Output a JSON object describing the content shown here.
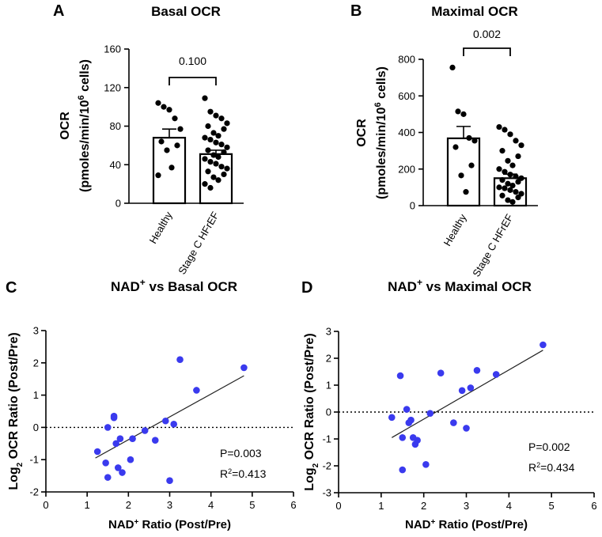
{
  "chart_data": [
    {
      "panel": "A",
      "type": "bar",
      "title": "Basal OCR",
      "ylabel_line1": "OCR",
      "ylabel_line2": "(pmoles/min/10",
      "ylabel_sup": "6",
      "ylabel_line2_end": " cells)",
      "ylim": [
        0,
        160
      ],
      "yticks": [
        0,
        40,
        80,
        120,
        160
      ],
      "categories": [
        "Healthy",
        "Stage C HFrEF"
      ],
      "values": [
        68,
        51
      ],
      "sem": [
        9,
        4
      ],
      "comparison_p": "0.100",
      "points": [
        [
          104,
          100,
          97,
          88,
          77,
          64,
          60,
          55,
          37,
          29
        ],
        [
          109,
          95,
          91,
          88,
          83,
          80,
          77,
          73,
          70,
          68,
          66,
          63,
          61,
          58,
          55,
          53,
          50,
          48,
          46,
          43,
          41,
          38,
          36,
          33,
          30,
          27,
          24,
          20,
          16
        ]
      ]
    },
    {
      "panel": "B",
      "type": "bar",
      "title": "Maximal OCR",
      "ylabel_line1": "OCR",
      "ylabel_line2": "(pmoles/min/10",
      "ylabel_sup": "6",
      "ylabel_line2_end": " cells)",
      "ylim": [
        0,
        800
      ],
      "yticks": [
        0,
        200,
        400,
        600,
        800
      ],
      "categories": [
        "Healthy",
        "Stage C HFrEF"
      ],
      "values": [
        368,
        150
      ],
      "sem": [
        65,
        22
      ],
      "comparison_p": "0.002",
      "points": [
        [
          755,
          515,
          500,
          370,
          355,
          320,
          220,
          165,
          75
        ],
        [
          430,
          415,
          390,
          355,
          330,
          300,
          270,
          245,
          220,
          200,
          185,
          170,
          160,
          150,
          140,
          130,
          120,
          110,
          100,
          95,
          85,
          75,
          65,
          55,
          45,
          30,
          20
        ]
      ]
    },
    {
      "panel": "C",
      "type": "scatter",
      "title_pre": "NAD",
      "title_sup": "+",
      "title_post": " vs Basal OCR",
      "xlabel_pre": "NAD",
      "xlabel_sup": "+",
      "xlabel_post": " Ratio (Post/Pre)",
      "ylabel_pre": "Log",
      "ylabel_sub": "2",
      "ylabel_post": " OCR Ratio (Post/Pre)",
      "xlim": [
        0,
        6
      ],
      "ylim": [
        -2,
        3
      ],
      "xticks": [
        0,
        1,
        2,
        3,
        4,
        5,
        6
      ],
      "yticks": [
        -2,
        -1,
        0,
        1,
        2,
        3
      ],
      "x": [
        1.25,
        1.45,
        1.5,
        1.5,
        1.65,
        1.65,
        1.7,
        1.75,
        1.8,
        1.85,
        2.05,
        2.1,
        2.4,
        2.65,
        2.9,
        3.0,
        3.1,
        3.25,
        3.65,
        4.8
      ],
      "y": [
        -0.75,
        -1.1,
        0.0,
        -1.55,
        0.3,
        0.35,
        -0.5,
        -1.25,
        -0.35,
        -1.4,
        -1.0,
        -0.35,
        -0.1,
        -0.4,
        0.2,
        -1.65,
        0.1,
        2.1,
        1.15,
        1.85
      ],
      "fit_line": {
        "x": [
          1.2,
          4.8
        ],
        "y": [
          -0.95,
          1.6
        ]
      },
      "ref_line_y": 0,
      "p_label": "P=0.003",
      "r2_pre": "R",
      "r2_sup": "2",
      "r2_post": "=0.413",
      "point_color": "#3a3aee"
    },
    {
      "panel": "D",
      "type": "scatter",
      "title_pre": "NAD",
      "title_sup": "+",
      "title_post": " vs Maximal OCR",
      "xlabel_pre": "NAD",
      "xlabel_sup": "+",
      "xlabel_post": " Ratio (Post/Pre)",
      "ylabel_pre": "Log",
      "ylabel_sub": "2",
      "ylabel_post": " OCR Ratio (Post/Pre)",
      "xlim": [
        0,
        6
      ],
      "ylim": [
        -3,
        3
      ],
      "xticks": [
        0,
        1,
        2,
        3,
        4,
        5,
        6
      ],
      "yticks": [
        -3,
        -2,
        -1,
        0,
        1,
        2,
        3
      ],
      "x": [
        1.25,
        1.45,
        1.5,
        1.5,
        1.6,
        1.65,
        1.7,
        1.75,
        1.8,
        1.85,
        2.05,
        2.15,
        2.4,
        2.7,
        2.9,
        3.0,
        3.1,
        3.25,
        3.7,
        4.8
      ],
      "y": [
        -0.2,
        1.35,
        -0.95,
        -2.15,
        0.1,
        -0.4,
        -0.3,
        -0.95,
        -1.2,
        -1.05,
        -1.95,
        -0.05,
        1.45,
        -0.4,
        0.8,
        -0.6,
        0.9,
        1.55,
        1.4,
        2.5
      ],
      "fit_line": {
        "x": [
          1.25,
          4.8
        ],
        "y": [
          -0.95,
          2.3
        ]
      },
      "ref_line_y": 0,
      "p_label": "P=0.002",
      "r2_pre": "R",
      "r2_sup": "2",
      "r2_post": "=0.434",
      "point_color": "#3a3aee"
    }
  ]
}
